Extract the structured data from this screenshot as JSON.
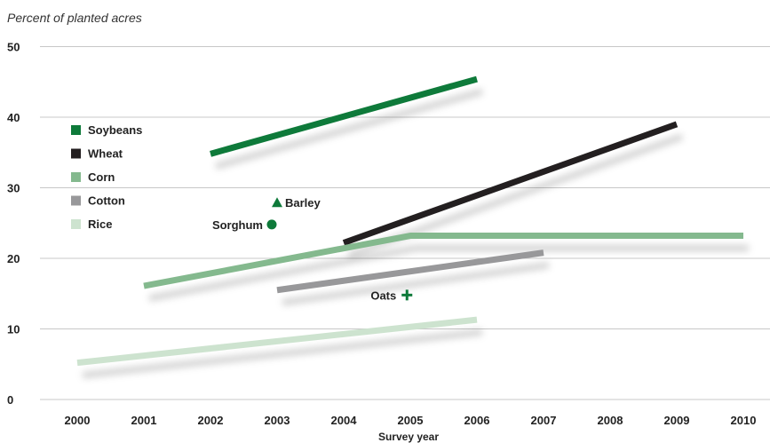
{
  "chart_data": {
    "type": "line",
    "ylabel": "Percent of planted acres",
    "xlabel": "Survey year",
    "ylim": [
      0,
      50
    ],
    "yticks": [
      "0",
      "10",
      "20",
      "30",
      "40",
      "50"
    ],
    "xticks": [
      "2000",
      "2001",
      "2002",
      "2003",
      "2004",
      "2005",
      "2006",
      "2007",
      "2008",
      "2009",
      "2010"
    ],
    "grid": true,
    "legend_position": "left",
    "series": [
      {
        "name": "Soybeans",
        "color": "#0e7a3a",
        "points": [
          [
            2002,
            34.8
          ],
          [
            2006,
            45.4
          ]
        ]
      },
      {
        "name": "Wheat",
        "color": "#231f20",
        "points": [
          [
            2004,
            22.2
          ],
          [
            2009,
            39.0
          ]
        ]
      },
      {
        "name": "Corn",
        "color": "#84b98e",
        "points": [
          [
            2001,
            16.1
          ],
          [
            2005,
            23.2
          ],
          [
            2010,
            23.2
          ]
        ]
      },
      {
        "name": "Cotton",
        "color": "#98989a",
        "points": [
          [
            2003,
            15.5
          ],
          [
            2007,
            20.8
          ]
        ]
      },
      {
        "name": "Rice",
        "color": "#cde3cf",
        "points": [
          [
            2000,
            5.2
          ],
          [
            2006,
            11.3
          ]
        ]
      }
    ],
    "annotations": [
      {
        "label": "Barley",
        "marker": "triangle",
        "color": "#0e7a3a",
        "x": 2003,
        "y": 27.9
      },
      {
        "label": "Sorghum",
        "marker": "circle",
        "color": "#0e7a3a",
        "x": 2003,
        "y": 24.8
      },
      {
        "label": "Oats",
        "marker": "plus",
        "color": "#0e7a3a",
        "x": 2004.95,
        "y": 14.8
      }
    ]
  }
}
